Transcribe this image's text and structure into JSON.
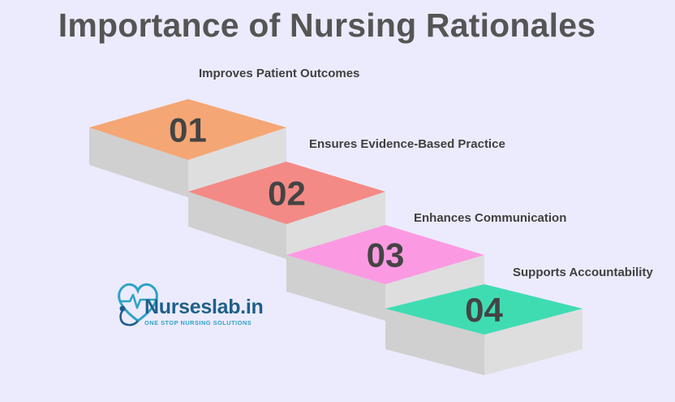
{
  "title": "Importance of Nursing Rationales",
  "steps": [
    {
      "number": "01",
      "label": "Improves Patient Outcomes",
      "color": "#f4a674"
    },
    {
      "number": "02",
      "label": "Ensures Evidence-Based Practice",
      "color": "#f48a85"
    },
    {
      "number": "03",
      "label": "Enhances Communication",
      "color": "#fb9ae2"
    },
    {
      "number": "04",
      "label": "Supports Accountability",
      "color": "#3fdcb2"
    }
  ],
  "logo": {
    "name": "Nurseslab.in",
    "tagline": "ONE STOP NURSING SOLUTIONS",
    "icon": "heart-stethoscope-icon"
  },
  "colors": {
    "background": "#ecebfd",
    "step_front": "#d0d0d0",
    "step_side": "#dedede",
    "title": "#555555",
    "logo_text": "#1f5f8b",
    "logo_accent": "#2ea3c6"
  }
}
